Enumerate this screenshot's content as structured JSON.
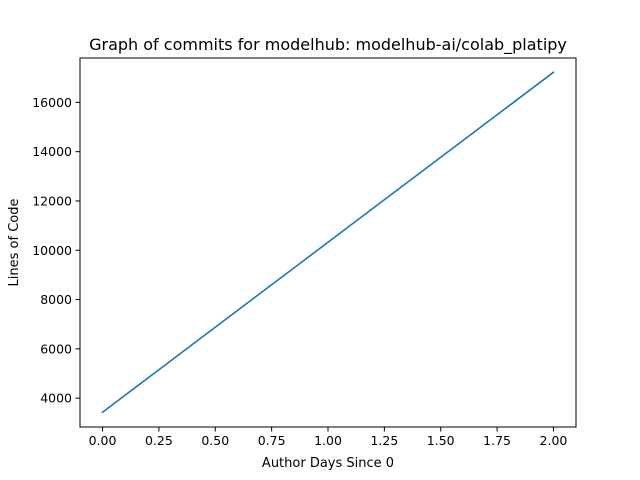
{
  "chart_data": {
    "type": "line",
    "title": "Graph of commits for modelhub: modelhub-ai/colab_platipy",
    "xlabel": "Author Days Since 0",
    "ylabel": "Lines of Code",
    "xlim": [
      -0.1,
      2.1
    ],
    "ylim": [
      2830,
      17800
    ],
    "xticks": [
      0.0,
      0.25,
      0.5,
      0.75,
      1.0,
      1.25,
      1.5,
      1.75,
      2.0
    ],
    "xtick_labels": [
      "0.00",
      "0.25",
      "0.50",
      "0.75",
      "1.00",
      "1.25",
      "1.50",
      "1.75",
      "2.00"
    ],
    "yticks": [
      4000,
      6000,
      8000,
      10000,
      12000,
      14000,
      16000
    ],
    "ytick_labels": [
      "4000",
      "6000",
      "8000",
      "10000",
      "12000",
      "14000",
      "16000"
    ],
    "grid": false,
    "series": [
      {
        "color": "#1f77b4",
        "x": [
          0.0,
          2.0
        ],
        "y": [
          3430,
          17220
        ]
      }
    ]
  }
}
